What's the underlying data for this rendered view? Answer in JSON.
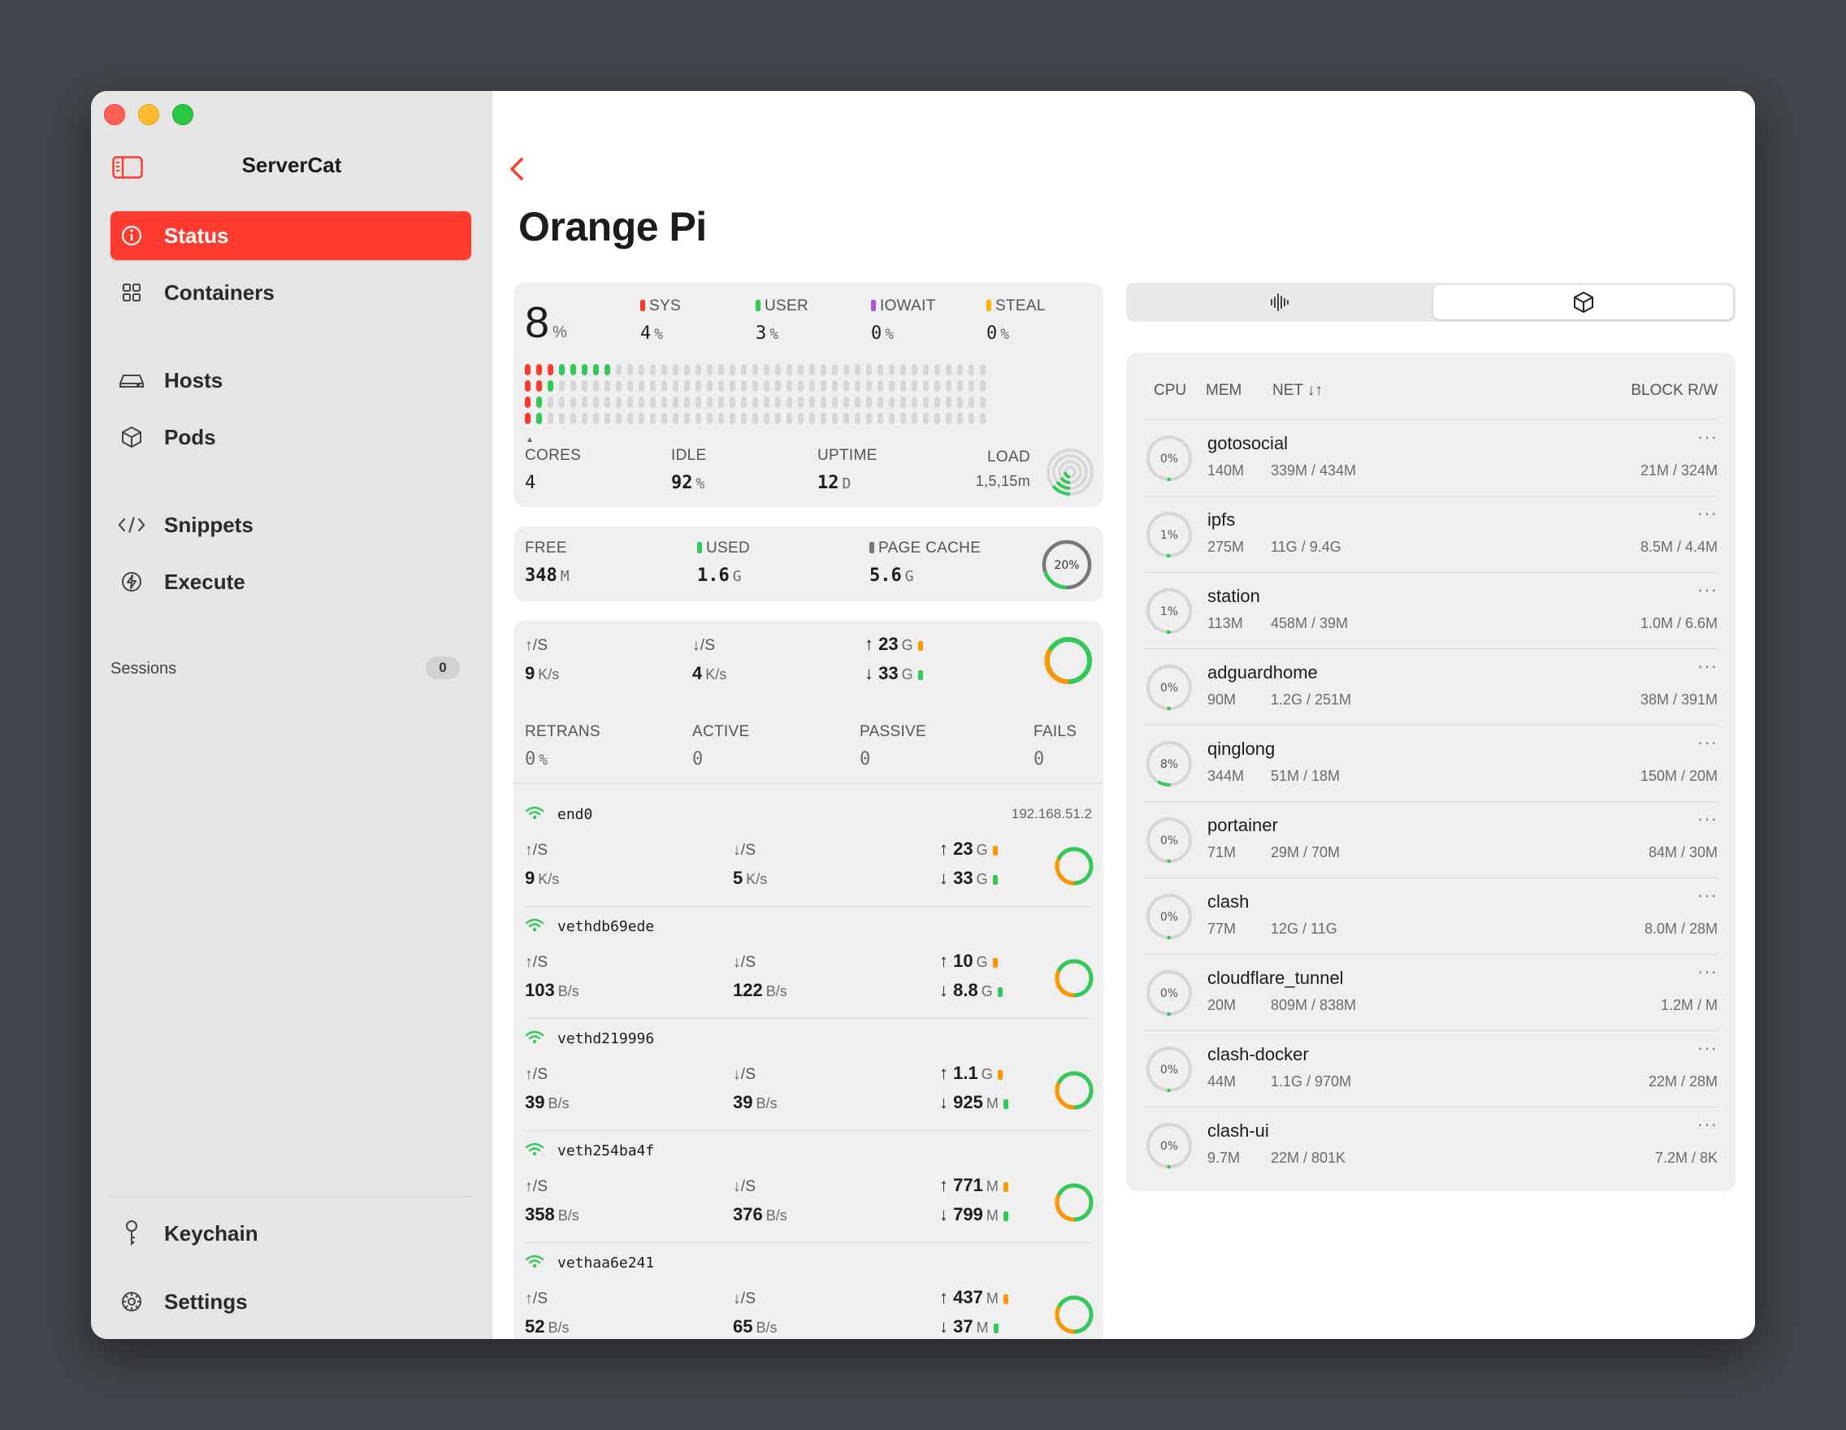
{
  "sidebar": {
    "app_title": "ServerCat",
    "nav": [
      "Status",
      "Containers",
      "Hosts",
      "Pods",
      "Snippets",
      "Execute"
    ],
    "sessions_label": "Sessions",
    "sessions_count": "0",
    "bottom": [
      "Keychain",
      "Settings"
    ]
  },
  "page": {
    "title": "Orange Pi"
  },
  "cpu": {
    "total": "8",
    "total_unit": "%",
    "sys_label": "SYS",
    "sys": "4",
    "sys_unit": "%",
    "user_label": "USER",
    "user": "3",
    "user_unit": "%",
    "iowait_label": "IOWAIT",
    "iowait": "0",
    "iowait_unit": "%",
    "steal_label": "STEAL",
    "steal": "0",
    "steal_unit": "%",
    "cores_label": "CORES",
    "cores": "4",
    "idle_label": "IDLE",
    "idle": "92",
    "idle_unit": "%",
    "uptime_label": "UPTIME",
    "uptime": "12",
    "uptime_unit": "D",
    "load_label": "LOAD",
    "load_sub": "1,5,15m",
    "colors": {
      "sys": "#ff3b30",
      "user": "#34c759",
      "iowait": "#af52de",
      "steal": "#ffb300"
    }
  },
  "memory": {
    "free_label": "FREE",
    "free": "348",
    "free_unit": "M",
    "used_label": "USED",
    "used": "1.6",
    "used_unit": "G",
    "cache_label": "PAGE CACHE",
    "cache": "5.6",
    "cache_unit": "G",
    "gauge_text": "20%",
    "gauge_fraction": 0.2
  },
  "network": {
    "up_label": "↑/S",
    "up": "9",
    "up_unit": "K/s",
    "down_label": "↓/S",
    "down": "4",
    "down_unit": "K/s",
    "total_up": "23",
    "total_up_unit": "G",
    "total_down": "33",
    "total_down_unit": "G",
    "retrans_label": "RETRANS",
    "retrans": "0",
    "retrans_unit": "%",
    "active_label": "ACTIVE",
    "active": "0",
    "passive_label": "PASSIVE",
    "passive": "0",
    "fails_label": "FAILS",
    "fails": "0",
    "interfaces": [
      {
        "name": "end0",
        "ip": "192.168.51.2",
        "up": "9",
        "up_unit": "K/s",
        "down": "5",
        "down_unit": "K/s",
        "tup": "23",
        "tup_unit": "G",
        "tdown": "33",
        "tdown_unit": "G"
      },
      {
        "name": "vethdb69ede",
        "ip": "",
        "up": "103",
        "up_unit": "B/s",
        "down": "122",
        "down_unit": "B/s",
        "tup": "10",
        "tup_unit": "G",
        "tdown": "8.8",
        "tdown_unit": "G"
      },
      {
        "name": "vethd219996",
        "ip": "",
        "up": "39",
        "up_unit": "B/s",
        "down": "39",
        "down_unit": "B/s",
        "tup": "1.1",
        "tup_unit": "G",
        "tdown": "925",
        "tdown_unit": "M"
      },
      {
        "name": "veth254ba4f",
        "ip": "",
        "up": "358",
        "up_unit": "B/s",
        "down": "376",
        "down_unit": "B/s",
        "tup": "771",
        "tup_unit": "M",
        "tdown": "799",
        "tdown_unit": "M"
      },
      {
        "name": "vethaa6e241",
        "ip": "",
        "up": "52",
        "up_unit": "B/s",
        "down": "65",
        "down_unit": "B/s",
        "tup": "437",
        "tup_unit": "M",
        "tdown": "37",
        "tdown_unit": "M"
      }
    ]
  },
  "containers": {
    "headers": {
      "cpu": "CPU",
      "mem": "MEM",
      "net": "NET ↓↑",
      "block": "BLOCK R/W"
    },
    "items": [
      {
        "name": "gotosocial",
        "cpu": "0%",
        "mem": "140M",
        "net": "339M / 434M",
        "block": "21M / 324M"
      },
      {
        "name": "ipfs",
        "cpu": "1%",
        "mem": "275M",
        "net": "11G / 9.4G",
        "block": "8.5M / 4.4M"
      },
      {
        "name": "station",
        "cpu": "1%",
        "mem": "113M",
        "net": "458M / 39M",
        "block": "1.0M / 6.6M"
      },
      {
        "name": "adguardhome",
        "cpu": "0%",
        "mem": "90M",
        "net": "1.2G / 251M",
        "block": "38M / 391M"
      },
      {
        "name": "qinglong",
        "cpu": "8%",
        "mem": "344M",
        "net": "51M / 18M",
        "block": "150M / 20M"
      },
      {
        "name": "portainer",
        "cpu": "0%",
        "mem": "71M",
        "net": "29M / 70M",
        "block": "84M / 30M"
      },
      {
        "name": "clash",
        "cpu": "0%",
        "mem": "77M",
        "net": "12G / 11G",
        "block": "8.0M / 28M"
      },
      {
        "name": "cloudflare_tunnel",
        "cpu": "0%",
        "mem": "20M",
        "net": "809M / 838M",
        "block": "1.2M / M"
      },
      {
        "name": "clash-docker",
        "cpu": "0%",
        "mem": "44M",
        "net": "1.1G / 970M",
        "block": "22M / 28M"
      },
      {
        "name": "clash-ui",
        "cpu": "0%",
        "mem": "9.7M",
        "net": "22M / 801K",
        "block": "7.2M / 8K"
      }
    ],
    "more_label": "···"
  }
}
